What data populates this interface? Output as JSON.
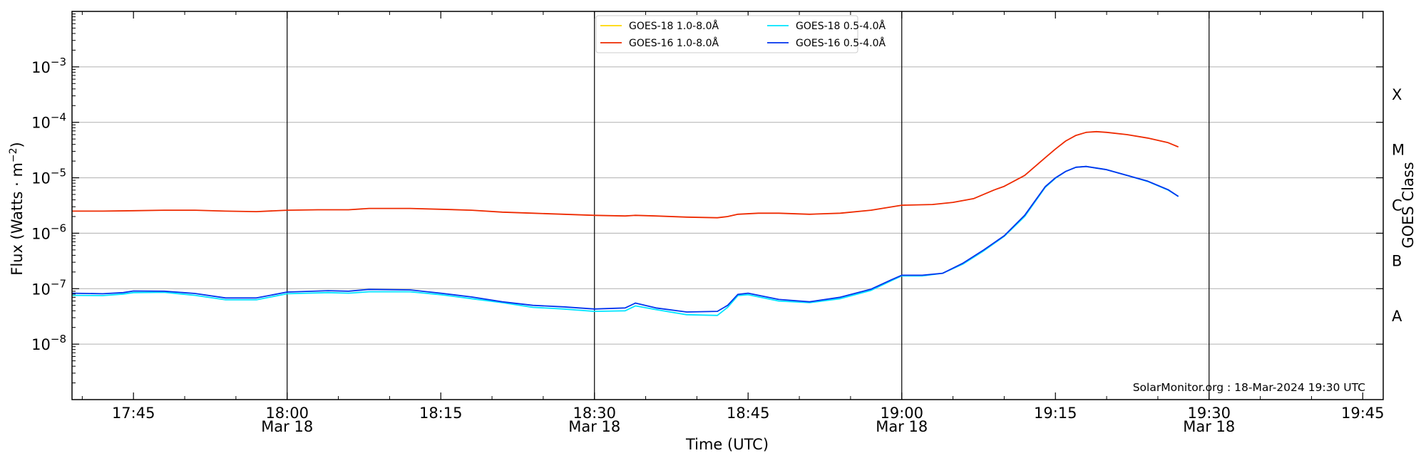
{
  "chart_data": {
    "type": "line",
    "xlabel": "Time (UTC)",
    "ylabel": "Flux (Watts · m",
    "ylabel_sup": "−2",
    "ylabel_close": ")",
    "y2label": "GOES Class",
    "yscale": "log",
    "ylim": [
      1e-09,
      0.01
    ],
    "xlim": [
      "17:39",
      "19:47"
    ],
    "y_ticks": [
      {
        "value": 1e-08,
        "base": "10",
        "exp": "−8"
      },
      {
        "value": 1e-07,
        "base": "10",
        "exp": "−7"
      },
      {
        "value": 1e-06,
        "base": "10",
        "exp": "−6"
      },
      {
        "value": 1e-05,
        "base": "10",
        "exp": "−5"
      },
      {
        "value": 0.0001,
        "base": "10",
        "exp": "−4"
      },
      {
        "value": 0.001,
        "base": "10",
        "exp": "−3"
      }
    ],
    "x_ticks": [
      {
        "time": "17:45",
        "label": "17:45",
        "sublabel": ""
      },
      {
        "time": "18:00",
        "label": "18:00",
        "sublabel": "Mar 18"
      },
      {
        "time": "18:15",
        "label": "18:15",
        "sublabel": ""
      },
      {
        "time": "18:30",
        "label": "18:30",
        "sublabel": "Mar 18"
      },
      {
        "time": "18:45",
        "label": "18:45",
        "sublabel": ""
      },
      {
        "time": "19:00",
        "label": "19:00",
        "sublabel": "Mar 18"
      },
      {
        "time": "19:15",
        "label": "19:15",
        "sublabel": ""
      },
      {
        "time": "19:30",
        "label": "19:30",
        "sublabel": "Mar 18"
      },
      {
        "time": "19:45",
        "label": "19:45",
        "sublabel": ""
      }
    ],
    "vlines": [
      "18:00",
      "18:30",
      "19:00",
      "19:30"
    ],
    "grid": "horizontal",
    "goes_classes": [
      {
        "label": "A",
        "value": 3.16e-08
      },
      {
        "label": "B",
        "value": 3.16e-07
      },
      {
        "label": "C",
        "value": 3.16e-06
      },
      {
        "label": "M",
        "value": 3.16e-05
      },
      {
        "label": "X",
        "value": 0.000316
      }
    ],
    "legend": {
      "position": "top-center",
      "entries": [
        {
          "series": 0,
          "name": "GOES-18 1.0-8.0Å",
          "color": "#ffd700"
        },
        {
          "series": 2,
          "name": "GOES-18 0.5-4.0Å",
          "color": "#00e5ff"
        },
        {
          "series": 1,
          "name": "GOES-16 1.0-8.0Å",
          "color": "#ee2a00"
        },
        {
          "series": 3,
          "name": "GOES-16 0.5-4.0Å",
          "color": "#0033ee"
        }
      ]
    },
    "series": [
      {
        "name": "GOES-18 1.0-8.0Å",
        "color": "#ffd700",
        "points": []
      },
      {
        "name": "GOES-16 1.0-8.0Å",
        "color": "#ee2a00",
        "points": [
          [
            "17:39",
            2.5e-06
          ],
          [
            "17:42",
            2.5e-06
          ],
          [
            "17:45",
            2.55e-06
          ],
          [
            "17:48",
            2.6e-06
          ],
          [
            "17:51",
            2.6e-06
          ],
          [
            "17:54",
            2.5e-06
          ],
          [
            "17:57",
            2.45e-06
          ],
          [
            "18:00",
            2.6e-06
          ],
          [
            "18:03",
            2.65e-06
          ],
          [
            "18:06",
            2.65e-06
          ],
          [
            "18:08",
            2.8e-06
          ],
          [
            "18:12",
            2.8e-06
          ],
          [
            "18:15",
            2.7e-06
          ],
          [
            "18:18",
            2.6e-06
          ],
          [
            "18:21",
            2.4e-06
          ],
          [
            "18:24",
            2.3e-06
          ],
          [
            "18:27",
            2.2e-06
          ],
          [
            "18:30",
            2.1e-06
          ],
          [
            "18:33",
            2.05e-06
          ],
          [
            "18:34",
            2.1e-06
          ],
          [
            "18:36",
            2.05e-06
          ],
          [
            "18:39",
            1.95e-06
          ],
          [
            "18:42",
            1.9e-06
          ],
          [
            "18:43",
            2e-06
          ],
          [
            "18:44",
            2.2e-06
          ],
          [
            "18:46",
            2.3e-06
          ],
          [
            "18:48",
            2.3e-06
          ],
          [
            "18:51",
            2.2e-06
          ],
          [
            "18:54",
            2.3e-06
          ],
          [
            "18:57",
            2.6e-06
          ],
          [
            "19:00",
            3.2e-06
          ],
          [
            "19:03",
            3.3e-06
          ],
          [
            "19:05",
            3.6e-06
          ],
          [
            "19:07",
            4.2e-06
          ],
          [
            "19:09",
            6e-06
          ],
          [
            "19:10",
            7e-06
          ],
          [
            "19:12",
            1.1e-05
          ],
          [
            "19:14",
            2.3e-05
          ],
          [
            "19:15",
            3.3e-05
          ],
          [
            "19:16",
            4.6e-05
          ],
          [
            "19:17",
            5.8e-05
          ],
          [
            "19:18",
            6.6e-05
          ],
          [
            "19:19",
            6.8e-05
          ],
          [
            "19:20",
            6.6e-05
          ],
          [
            "19:22",
            6e-05
          ],
          [
            "19:24",
            5.2e-05
          ],
          [
            "19:26",
            4.3e-05
          ],
          [
            "19:27",
            3.6e-05
          ]
        ]
      },
      {
        "name": "GOES-18 0.5-4.0Å",
        "color": "#00e5ff",
        "points": [
          [
            "17:39",
            7.6e-08
          ],
          [
            "17:42",
            7.5e-08
          ],
          [
            "17:44",
            8e-08
          ],
          [
            "17:45",
            8.5e-08
          ],
          [
            "17:48",
            8.6e-08
          ],
          [
            "17:51",
            7.6e-08
          ],
          [
            "17:54",
            6.3e-08
          ],
          [
            "17:57",
            6.3e-08
          ],
          [
            "18:00",
            8.1e-08
          ],
          [
            "18:04",
            8.5e-08
          ],
          [
            "18:06",
            8.3e-08
          ],
          [
            "18:08",
            8.8e-08
          ],
          [
            "18:12",
            8.8e-08
          ],
          [
            "18:15",
            7.8e-08
          ],
          [
            "18:18",
            6.6e-08
          ],
          [
            "18:21",
            5.6e-08
          ],
          [
            "18:24",
            4.6e-08
          ],
          [
            "18:27",
            4.3e-08
          ],
          [
            "18:30",
            3.9e-08
          ],
          [
            "18:33",
            4e-08
          ],
          [
            "18:34",
            4.9e-08
          ],
          [
            "18:36",
            4.2e-08
          ],
          [
            "18:39",
            3.4e-08
          ],
          [
            "18:42",
            3.3e-08
          ],
          [
            "18:43",
            4.6e-08
          ],
          [
            "18:44",
            7.5e-08
          ],
          [
            "18:45",
            7.8e-08
          ],
          [
            "18:48",
            6e-08
          ],
          [
            "18:51",
            5.6e-08
          ],
          [
            "18:54",
            6.6e-08
          ],
          [
            "18:57",
            9.3e-08
          ],
          [
            "18:59",
            1.4e-07
          ],
          [
            "19:00",
            1.7e-07
          ],
          [
            "19:02",
            1.7e-07
          ],
          [
            "19:04",
            1.9e-07
          ],
          [
            "19:06",
            2.8e-07
          ],
          [
            "19:08",
            4.8e-07
          ],
          [
            "19:10",
            8.8e-07
          ],
          [
            "19:12",
            2e-06
          ],
          [
            "19:14",
            6.7e-06
          ],
          [
            "19:15",
            9.8e-06
          ],
          [
            "19:16",
            1.3e-05
          ],
          [
            "19:17",
            1.55e-05
          ],
          [
            "19:18",
            1.6e-05
          ],
          [
            "19:20",
            1.4e-05
          ],
          [
            "19:22",
            1.1e-05
          ],
          [
            "19:24",
            8.6e-06
          ],
          [
            "19:26",
            6e-06
          ],
          [
            "19:27",
            4.6e-06
          ]
        ]
      },
      {
        "name": "GOES-16 0.5-4.0Å",
        "color": "#0033ee",
        "points": [
          [
            "17:39",
            8.3e-08
          ],
          [
            "17:42",
            8.1e-08
          ],
          [
            "17:44",
            8.5e-08
          ],
          [
            "17:45",
            9.1e-08
          ],
          [
            "17:48",
            9e-08
          ],
          [
            "17:51",
            8.2e-08
          ],
          [
            "17:54",
            6.8e-08
          ],
          [
            "17:57",
            6.8e-08
          ],
          [
            "18:00",
            8.7e-08
          ],
          [
            "18:04",
            9.2e-08
          ],
          [
            "18:06",
            9e-08
          ],
          [
            "18:08",
            9.7e-08
          ],
          [
            "18:12",
            9.5e-08
          ],
          [
            "18:15",
            8.3e-08
          ],
          [
            "18:18",
            7.1e-08
          ],
          [
            "18:21",
            5.8e-08
          ],
          [
            "18:24",
            5e-08
          ],
          [
            "18:27",
            4.7e-08
          ],
          [
            "18:30",
            4.3e-08
          ],
          [
            "18:33",
            4.5e-08
          ],
          [
            "18:34",
            5.5e-08
          ],
          [
            "18:36",
            4.5e-08
          ],
          [
            "18:39",
            3.8e-08
          ],
          [
            "18:42",
            3.9e-08
          ],
          [
            "18:43",
            5e-08
          ],
          [
            "18:44",
            7.9e-08
          ],
          [
            "18:45",
            8.3e-08
          ],
          [
            "18:48",
            6.4e-08
          ],
          [
            "18:51",
            5.8e-08
          ],
          [
            "18:54",
            7e-08
          ],
          [
            "18:57",
            9.8e-08
          ],
          [
            "18:59",
            1.45e-07
          ],
          [
            "19:00",
            1.75e-07
          ],
          [
            "19:02",
            1.75e-07
          ],
          [
            "19:04",
            1.9e-07
          ],
          [
            "19:06",
            2.9e-07
          ],
          [
            "19:08",
            5e-07
          ],
          [
            "19:10",
            9e-07
          ],
          [
            "19:12",
            2.1e-06
          ],
          [
            "19:14",
            6.9e-06
          ],
          [
            "19:15",
            1e-05
          ],
          [
            "19:16",
            1.3e-05
          ],
          [
            "19:17",
            1.55e-05
          ],
          [
            "19:18",
            1.6e-05
          ],
          [
            "19:20",
            1.4e-05
          ],
          [
            "19:22",
            1.1e-05
          ],
          [
            "19:24",
            8.7e-06
          ],
          [
            "19:26",
            6.1e-06
          ],
          [
            "19:27",
            4.6e-06
          ]
        ]
      }
    ],
    "annotation": "SolarMonitor.org : 18-Mar-2024 19:30 UTC"
  }
}
